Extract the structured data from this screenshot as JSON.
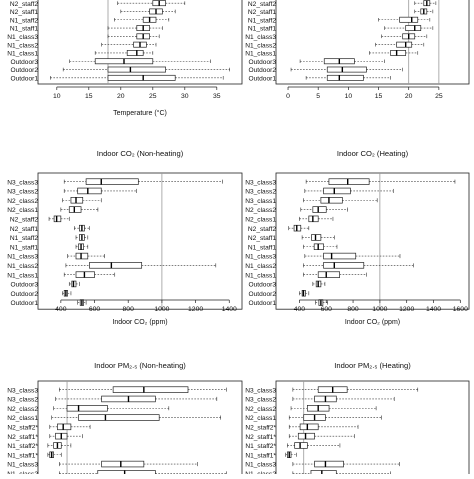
{
  "chart_data": [
    {
      "type": "boxplot",
      "title": "",
      "xlabel": "Temperature (°C)",
      "xlim": [
        8,
        38
      ],
      "xticks": [
        10,
        15,
        20,
        25,
        30,
        35
      ],
      "refline": 18,
      "categories": [
        "N2_staff2",
        "N2_staff1",
        "N1_staff2",
        "N1_staff1",
        "N1_class3",
        "N1_class2",
        "N1_class1",
        "Outdoor3",
        "Outdoor2",
        "Outdoor1"
      ],
      "boxes": [
        {
          "min": 19.5,
          "q1": 25.0,
          "median": 26.0,
          "q3": 27.0,
          "max": 30.0
        },
        {
          "min": 20.0,
          "q1": 24.5,
          "median": 25.5,
          "q3": 26.5,
          "max": 28.5
        },
        {
          "min": 19.0,
          "q1": 23.5,
          "median": 24.5,
          "q3": 25.5,
          "max": 27.5
        },
        {
          "min": 18.0,
          "q1": 22.5,
          "median": 23.5,
          "q3": 24.5,
          "max": 26.5
        },
        {
          "min": 18.0,
          "q1": 22.5,
          "median": 23.5,
          "q3": 24.5,
          "max": 26.0
        },
        {
          "min": 17.0,
          "q1": 22.0,
          "median": 23.0,
          "q3": 24.0,
          "max": 25.5
        },
        {
          "min": 16.0,
          "q1": 21.0,
          "median": 22.5,
          "q3": 23.5,
          "max": 25.0
        },
        {
          "min": 12.0,
          "q1": 16.0,
          "median": 20.5,
          "q3": 25.0,
          "max": 34.0
        },
        {
          "min": 11.0,
          "q1": 18.0,
          "median": 21.5,
          "q3": 27.0,
          "max": 37.0
        },
        {
          "min": 9.0,
          "q1": 18.0,
          "median": 23.5,
          "q3": 28.5,
          "max": 36.0
        }
      ]
    },
    {
      "type": "boxplot",
      "title": "",
      "xlabel": "",
      "xlim": [
        -1,
        29
      ],
      "xticks": [
        0,
        5,
        10,
        15,
        20,
        25
      ],
      "refline": 25,
      "reflines": [
        20,
        25
      ],
      "categories": [
        "N2_staff2",
        "N2_staff1",
        "N1_staff2",
        "N1_staff1",
        "N1_class3",
        "N1_class2",
        "N1_class1",
        "Outdoor3",
        "Outdoor2",
        "Outdoor1"
      ],
      "boxes": [
        {
          "min": 21.0,
          "q1": 22.5,
          "median": 23.0,
          "q3": 23.5,
          "max": 24.5
        },
        {
          "min": 21.0,
          "q1": 22.0,
          "median": 22.5,
          "q3": 23.0,
          "max": 24.0
        },
        {
          "min": 15.0,
          "q1": 18.5,
          "median": 20.5,
          "q3": 21.5,
          "max": 23.5
        },
        {
          "min": 16.0,
          "q1": 19.5,
          "median": 21.0,
          "q3": 22.0,
          "max": 24.0
        },
        {
          "min": 15.5,
          "q1": 19.0,
          "median": 20.0,
          "q3": 21.0,
          "max": 23.0
        },
        {
          "min": 14.5,
          "q1": 18.0,
          "median": 19.5,
          "q3": 20.5,
          "max": 22.5
        },
        {
          "min": 13.5,
          "q1": 17.0,
          "median": 18.0,
          "q3": 19.5,
          "max": 21.5
        },
        {
          "min": 2.0,
          "q1": 6.0,
          "median": 8.5,
          "q3": 11.0,
          "max": 16.0
        },
        {
          "min": 0.5,
          "q1": 6.5,
          "median": 9.0,
          "q3": 13.0,
          "max": 19.0
        },
        {
          "min": 3.0,
          "q1": 6.5,
          "median": 8.5,
          "q3": 12.5,
          "max": 17.0
        }
      ]
    },
    {
      "type": "boxplot",
      "title": "Indoor CO₂ (Non-heating)",
      "xlabel": "Indoor CO₂ (ppm)",
      "xlim": [
        300,
        1440
      ],
      "xticks": [
        400,
        600,
        800,
        1000,
        1200,
        1400
      ],
      "refline": 1000,
      "categories": [
        "N3_class3",
        "N3_class2",
        "N2_class2",
        "N2_class1",
        "N2_staff2",
        "N2_staff1",
        "N1_staff2",
        "N1_staff1",
        "N1_class3",
        "N1_class2",
        "N1_class1",
        "Outdoor3",
        "Outdoor2",
        "Outdoor1"
      ],
      "boxes": [
        {
          "min": 420,
          "q1": 550,
          "median": 640,
          "q3": 860,
          "max": 1360
        },
        {
          "min": 420,
          "q1": 500,
          "median": 560,
          "q3": 640,
          "max": 850
        },
        {
          "min": 410,
          "q1": 460,
          "median": 490,
          "q3": 530,
          "max": 640
        },
        {
          "min": 400,
          "q1": 450,
          "median": 480,
          "q3": 520,
          "max": 620
        },
        {
          "min": 330,
          "q1": 360,
          "median": 375,
          "q3": 400,
          "max": 450
        },
        {
          "min": 480,
          "q1": 510,
          "median": 525,
          "q3": 540,
          "max": 570
        },
        {
          "min": 490,
          "q1": 510,
          "median": 525,
          "q3": 540,
          "max": 560
        },
        {
          "min": 490,
          "q1": 505,
          "median": 520,
          "q3": 535,
          "max": 560
        },
        {
          "min": 440,
          "q1": 490,
          "median": 520,
          "q3": 560,
          "max": 660
        },
        {
          "min": 430,
          "q1": 570,
          "median": 700,
          "q3": 880,
          "max": 1320
        },
        {
          "min": 420,
          "q1": 490,
          "median": 540,
          "q3": 600,
          "max": 720
        },
        {
          "min": 450,
          "q1": 465,
          "median": 475,
          "q3": 490,
          "max": 510
        },
        {
          "min": 410,
          "q1": 420,
          "median": 430,
          "q3": 440,
          "max": 460
        },
        {
          "min": 500,
          "q1": 515,
          "median": 525,
          "q3": 535,
          "max": 550
        }
      ]
    },
    {
      "type": "boxplot",
      "title": "Indoor CO₂ (Heating)",
      "xlabel": "Indoor CO₂ (ppm)",
      "xlim": [
        270,
        1620
      ],
      "xticks": [
        400,
        600,
        800,
        1000,
        1200,
        1400,
        1600
      ],
      "refline": 1000,
      "categories": [
        "N3_class3",
        "N3_class2",
        "N3_class1",
        "N2_class2",
        "N2_class1",
        "N2_staff2",
        "N2_staff1",
        "N1_staff1",
        "N1_class3",
        "N1_class2",
        "N1_class1",
        "Outdoor3",
        "Outdoor2",
        "Outdoor1"
      ],
      "boxes": [
        {
          "min": 450,
          "q1": 620,
          "median": 760,
          "q3": 920,
          "max": 1560
        },
        {
          "min": 440,
          "q1": 580,
          "median": 660,
          "q3": 780,
          "max": 1100
        },
        {
          "min": 430,
          "q1": 560,
          "median": 620,
          "q3": 720,
          "max": 980
        },
        {
          "min": 410,
          "q1": 500,
          "median": 540,
          "q3": 600,
          "max": 760
        },
        {
          "min": 400,
          "q1": 470,
          "median": 500,
          "q3": 540,
          "max": 650
        },
        {
          "min": 320,
          "q1": 360,
          "median": 380,
          "q3": 410,
          "max": 470
        },
        {
          "min": 420,
          "q1": 490,
          "median": 520,
          "q3": 560,
          "max": 660
        },
        {
          "min": 430,
          "q1": 510,
          "median": 540,
          "q3": 580,
          "max": 680
        },
        {
          "min": 440,
          "q1": 580,
          "median": 640,
          "q3": 820,
          "max": 1150
        },
        {
          "min": 430,
          "q1": 580,
          "median": 660,
          "q3": 880,
          "max": 1250
        },
        {
          "min": 430,
          "q1": 540,
          "median": 600,
          "q3": 700,
          "max": 900
        },
        {
          "min": 500,
          "q1": 525,
          "median": 540,
          "q3": 560,
          "max": 590
        },
        {
          "min": 400,
          "q1": 420,
          "median": 430,
          "q3": 445,
          "max": 470
        },
        {
          "min": 520,
          "q1": 545,
          "median": 560,
          "q3": 575,
          "max": 610
        }
      ]
    },
    {
      "type": "boxplot",
      "title": "Indoor PM₂.₅ (Non-heating)",
      "xlabel": "",
      "xlim": [
        0,
        100
      ],
      "xticks": [],
      "refline": 12,
      "categories": [
        "N3_class3",
        "N3_class2",
        "N2_class2",
        "N2_class1",
        "N2_staff2*",
        "N2_staff1*",
        "N1_staff2*",
        "N1_staff1*",
        "N1_class3",
        "N1_class2"
      ],
      "boxes": [
        {
          "min": 8,
          "q1": 36,
          "median": 52,
          "q3": 75,
          "max": 95
        },
        {
          "min": 6,
          "q1": 30,
          "median": 44,
          "q3": 58,
          "max": 90
        },
        {
          "min": 5,
          "q1": 12,
          "median": 18,
          "q3": 33,
          "max": 65
        },
        {
          "min": 4,
          "q1": 18,
          "median": 32,
          "q3": 60,
          "max": 92
        },
        {
          "min": 3,
          "q1": 7,
          "median": 10,
          "q3": 14,
          "max": 24
        },
        {
          "min": 3,
          "q1": 6,
          "median": 9,
          "q3": 12,
          "max": 20
        },
        {
          "min": 2,
          "q1": 5,
          "median": 7,
          "q3": 9,
          "max": 14
        },
        {
          "min": 2,
          "q1": 3,
          "median": 4,
          "q3": 5,
          "max": 9
        },
        {
          "min": 8,
          "q1": 30,
          "median": 40,
          "q3": 52,
          "max": 80
        },
        {
          "min": 8,
          "q1": 28,
          "median": 42,
          "q3": 58,
          "max": 95
        }
      ]
    },
    {
      "type": "boxplot",
      "title": "Indoor PM₂.₅ (Heating)",
      "xlabel": "",
      "xlim": [
        0,
        100
      ],
      "xticks": [],
      "refline": 12,
      "categories": [
        "N3_class3",
        "N3_class2",
        "N2_class2",
        "N2_class1",
        "N2_staff2*",
        "N2_staff1*",
        "N1_staff2*",
        "N1_staff1*",
        "N1_class3",
        "N1_class2"
      ],
      "boxes": [
        {
          "min": 6,
          "q1": 20,
          "median": 28,
          "q3": 36,
          "max": 75
        },
        {
          "min": 6,
          "q1": 18,
          "median": 24,
          "q3": 30,
          "max": 62
        },
        {
          "min": 5,
          "q1": 14,
          "median": 20,
          "q3": 26,
          "max": 52
        },
        {
          "min": 4,
          "q1": 12,
          "median": 18,
          "q3": 24,
          "max": 55
        },
        {
          "min": 4,
          "q1": 10,
          "median": 14,
          "q3": 20,
          "max": 42
        },
        {
          "min": 4,
          "q1": 9,
          "median": 13,
          "q3": 18,
          "max": 40
        },
        {
          "min": 3,
          "q1": 7,
          "median": 10,
          "q3": 14,
          "max": 32
        },
        {
          "min": 2,
          "q1": 3,
          "median": 4,
          "q3": 5,
          "max": 8
        },
        {
          "min": 6,
          "q1": 18,
          "median": 24,
          "q3": 34,
          "max": 65
        },
        {
          "min": 6,
          "q1": 16,
          "median": 22,
          "q3": 30,
          "max": 60
        }
      ]
    }
  ]
}
